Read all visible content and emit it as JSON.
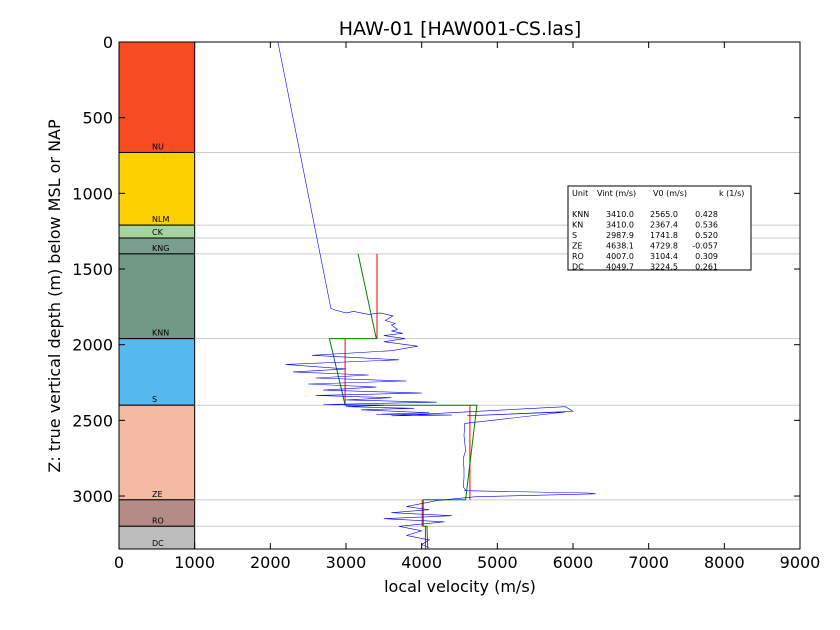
{
  "chart_data": {
    "type": "line",
    "title": "HAW-01 [HAW001-CS.las]",
    "xlabel": "local velocity (m/s)",
    "ylabel": "Z: true vertical depth (m) below MSL or NAP",
    "xlim": [
      0,
      9000
    ],
    "ylim": [
      3350,
      0
    ],
    "x_ticks": [
      "0",
      "1000",
      "2000",
      "3000",
      "4000",
      "5000",
      "6000",
      "7000",
      "8000",
      "9000"
    ],
    "y_ticks": [
      "0",
      "500",
      "1000",
      "1500",
      "2000",
      "2500",
      "3000"
    ],
    "units": [
      {
        "name": "NU",
        "top": 0,
        "base": 730,
        "color": "#f84b21"
      },
      {
        "name": "NLM",
        "top": 730,
        "base": 1210,
        "color": "#fdd100"
      },
      {
        "name": "CK",
        "top": 1210,
        "base": 1295,
        "color": "#a6d49d"
      },
      {
        "name": "KNG",
        "top": 1295,
        "base": 1400,
        "color": "#7a9e8e"
      },
      {
        "name": "KNN",
        "top": 1400,
        "base": 1960,
        "color": "#729985"
      },
      {
        "name": "S",
        "top": 1960,
        "base": 2400,
        "color": "#55b8ee"
      },
      {
        "name": "ZE",
        "top": 2400,
        "base": 3025,
        "color": "#f4b9a3"
      },
      {
        "name": "RO",
        "top": 3025,
        "base": 3200,
        "color": "#b48b86"
      },
      {
        "name": "DC",
        "top": 3200,
        "base": 3350,
        "color": "#bdbdbd"
      }
    ],
    "model_table": {
      "header": [
        "Unit",
        "Vint (m/s)",
        "V0 (m/s)",
        "k (1/s)"
      ],
      "rows": [
        [
          "KNN",
          "3410.0",
          "2565.0",
          "0.428"
        ],
        [
          "KN",
          "3410.0",
          "2367.4",
          "0.536"
        ],
        [
          "S",
          "2987.9",
          "1741.8",
          "0.520"
        ],
        [
          "ZE",
          "4638.1",
          "4729.8",
          "-0.057"
        ],
        [
          "RO",
          "4007.0",
          "3104.4",
          "0.309"
        ],
        [
          "DC",
          "4049.7",
          "3224.5",
          "0.261"
        ]
      ]
    },
    "series": [
      {
        "kind": "interval_velocity",
        "color": "#ff0000",
        "segments": [
          {
            "x": [
              3410,
              3410
            ],
            "y": [
              1400,
              1960
            ]
          },
          {
            "x": [
              2988,
              2988
            ],
            "y": [
              1960,
              2400
            ]
          },
          {
            "x": [
              4638,
              4638
            ],
            "y": [
              2400,
              3025
            ]
          },
          {
            "x": [
              4007,
              4007
            ],
            "y": [
              3025,
              3200
            ]
          },
          {
            "x": [
              4050,
              4050
            ],
            "y": [
              3200,
              3350
            ]
          }
        ]
      },
      {
        "kind": "v0_k_model",
        "color": "#008000",
        "segments": [
          {
            "x": [
              3160,
              3400,
              2780,
              2990,
              4730,
              4580,
              4020,
              4020,
              4070,
              4080
            ],
            "y": [
              1400,
              1960,
              1960,
              2400,
              2400,
              3025,
              3025,
              3200,
              3200,
              3350
            ]
          }
        ]
      },
      {
        "kind": "sonic_log",
        "color": "#0000ff",
        "x": [
          2100,
          2800,
          2850,
          3000,
          3100,
          3300,
          3450,
          3620,
          3520,
          3650,
          3600,
          3680,
          3600,
          3750,
          3500,
          3780,
          3500,
          3950,
          3600,
          2550,
          3700,
          2200,
          3000,
          2300,
          3300,
          2600,
          3800,
          2500,
          3400,
          2700,
          4000,
          2600,
          3600,
          3000,
          4200,
          2700,
          3500,
          3000,
          3900,
          3200,
          4100,
          3400,
          4400,
          3600,
          5900,
          6000,
          4600,
          5900,
          4570,
          4560,
          4580,
          4550,
          4560,
          4560,
          4550,
          4580,
          4570,
          6200,
          6300,
          5500,
          4700,
          4200,
          3800,
          4100,
          3600,
          4400,
          3500,
          4300,
          3700,
          4000,
          3800,
          4100,
          4000,
          4100
        ],
        "y": [
          0,
          1760,
          1770,
          1790,
          1780,
          1800,
          1790,
          1810,
          1840,
          1860,
          1870,
          1900,
          1910,
          1925,
          1940,
          1960,
          1980,
          2010,
          2040,
          2070,
          2100,
          2130,
          2160,
          2180,
          2200,
          2220,
          2240,
          2260,
          2280,
          2300,
          2320,
          2335,
          2350,
          2365,
          2380,
          2395,
          2400,
          2410,
          2420,
          2430,
          2450,
          2460,
          2465,
          2470,
          2410,
          2440,
          2470,
          2445,
          2520,
          2600,
          2700,
          2750,
          2820,
          2880,
          2940,
          2960,
          2965,
          2980,
          2985,
          2995,
          3005,
          3030,
          3070,
          3090,
          3110,
          3130,
          3150,
          3170,
          3200,
          3230,
          3260,
          3290,
          3320,
          3340
        ]
      }
    ]
  }
}
